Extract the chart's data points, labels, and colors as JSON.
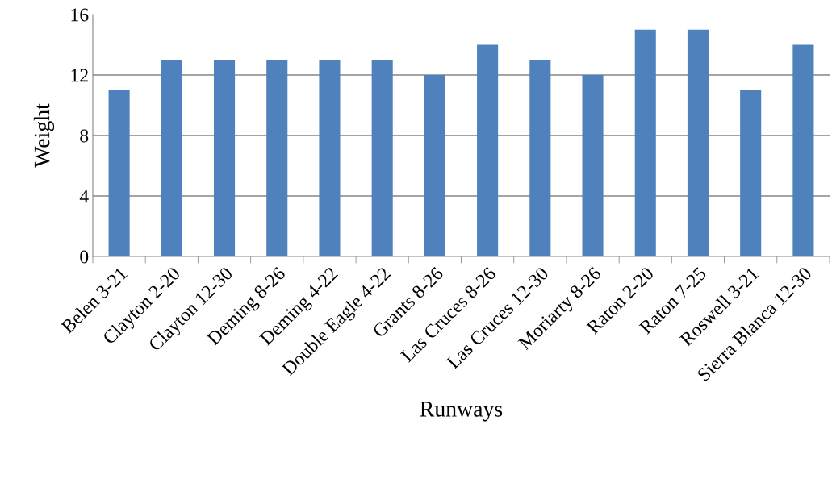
{
  "chart_data": {
    "type": "bar",
    "xlabel": "Runways",
    "ylabel": "Weight",
    "categories": [
      "Belen 3-21",
      "Clayton 2-20",
      "Clayton 12-30",
      "Deming 8-26",
      "Deming 4-22",
      "Double Eagle 4-22",
      "Grants 8-26",
      "Las Cruces 8-26",
      "Las Cruces 12-30",
      "Moriarty 8-26",
      "Raton 2-20",
      "Raton 7-25",
      "Roswell 3-21",
      "Sierra Blanca 12-30"
    ],
    "values": [
      11,
      13,
      13,
      13,
      13,
      13,
      12,
      14,
      13,
      12,
      15,
      15,
      11,
      14
    ],
    "color": "#4f81bd",
    "ylim": [
      0,
      16
    ],
    "yticks": [
      0,
      4,
      8,
      12,
      16
    ],
    "grid": "y"
  }
}
